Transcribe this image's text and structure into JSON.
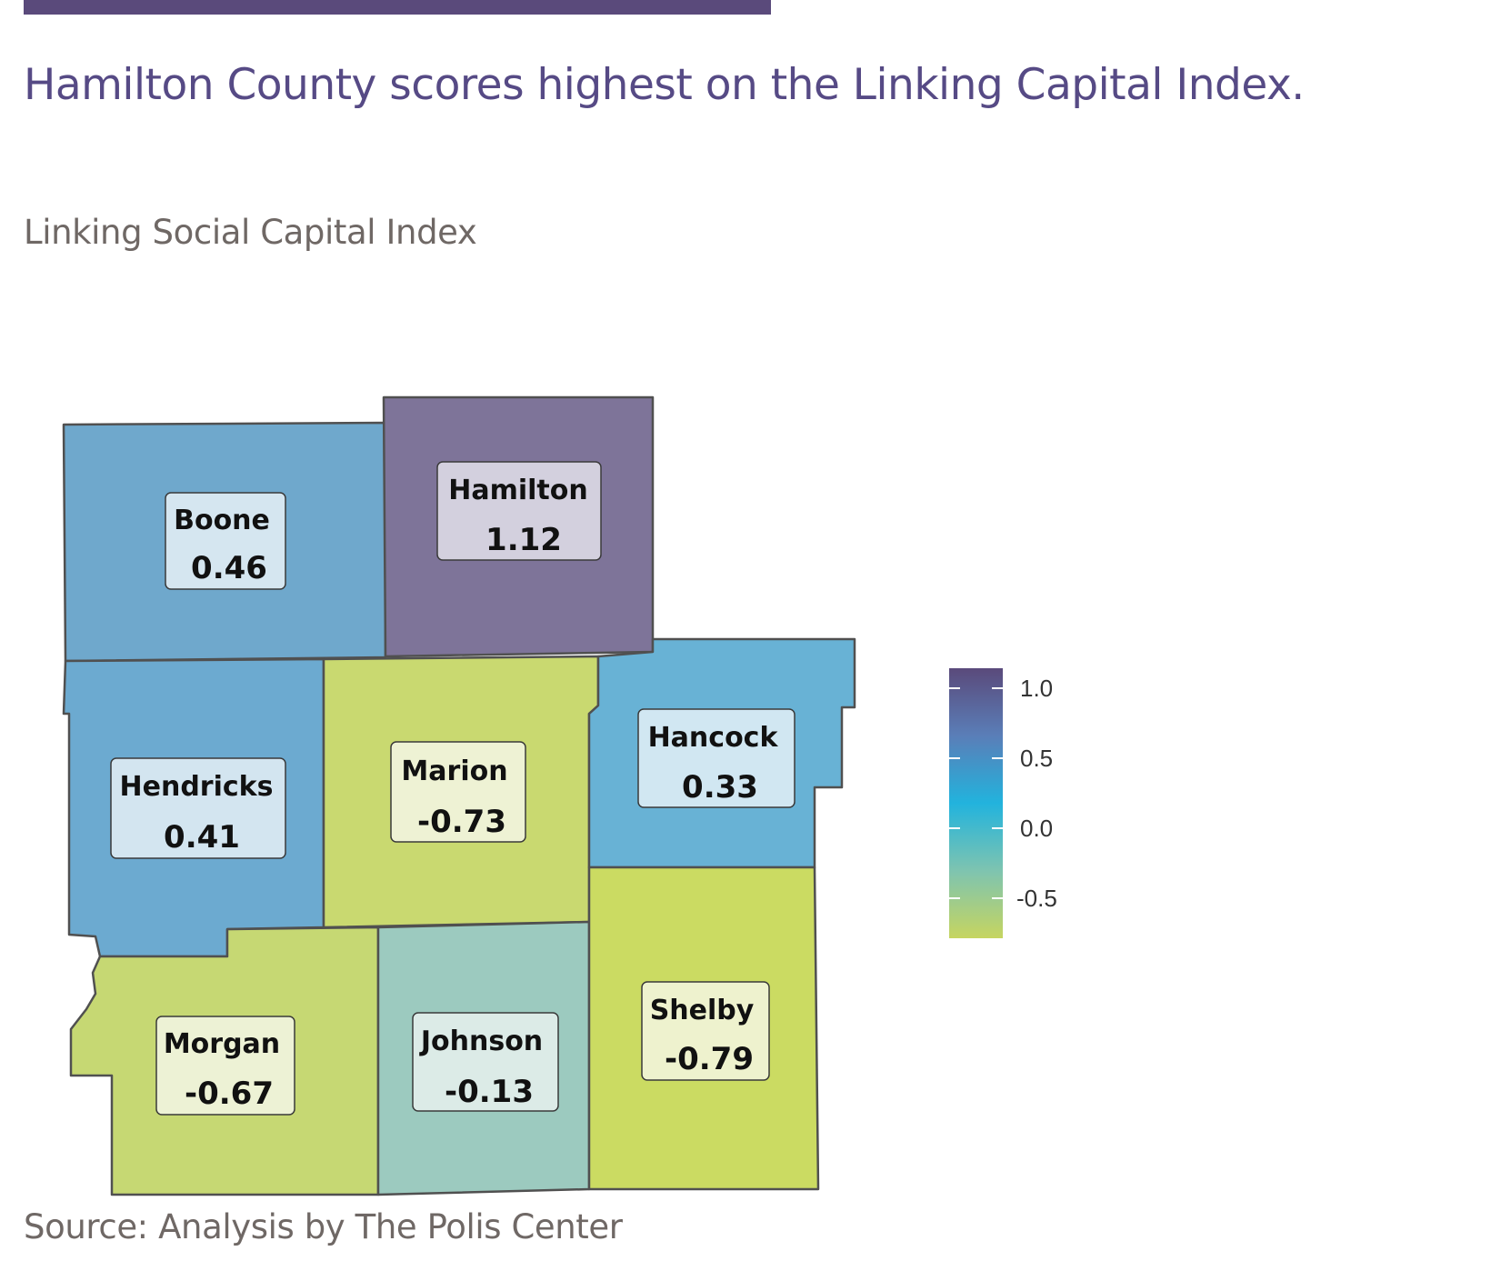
{
  "headline": "Hamilton County scores highest on the Linking Capital Index.",
  "subtitle": "Linking Social Capital Index",
  "source": "Source: Analysis by The Polis Center",
  "colors": {
    "accent": "#5a4a7b",
    "headline": "#564a85",
    "muted_text": "#6f6865"
  },
  "counties": [
    {
      "name": "Boone",
      "value": "0.46",
      "fill": "#6fa8cc"
    },
    {
      "name": "Hamilton",
      "value": "1.12",
      "fill": "#7e7499"
    },
    {
      "name": "Hendricks",
      "value": "0.41",
      "fill": "#6caad0"
    },
    {
      "name": "Marion",
      "value": "-0.73",
      "fill": "#c9d970"
    },
    {
      "name": "Hancock",
      "value": "0.33",
      "fill": "#68b2d5"
    },
    {
      "name": "Morgan",
      "value": "-0.67",
      "fill": "#c6d873"
    },
    {
      "name": "Johnson",
      "value": "-0.13",
      "fill": "#9ccabf"
    },
    {
      "name": "Shelby",
      "value": "-0.79",
      "fill": "#cbdb62"
    }
  ],
  "legend": {
    "ticks": [
      "1.0",
      "0.5",
      "0.0",
      "-0.5"
    ],
    "gradient": [
      "#5a4a7b",
      "#5a7eb8",
      "#22b3dd",
      "#7ec4b0",
      "#c6d560"
    ]
  }
}
